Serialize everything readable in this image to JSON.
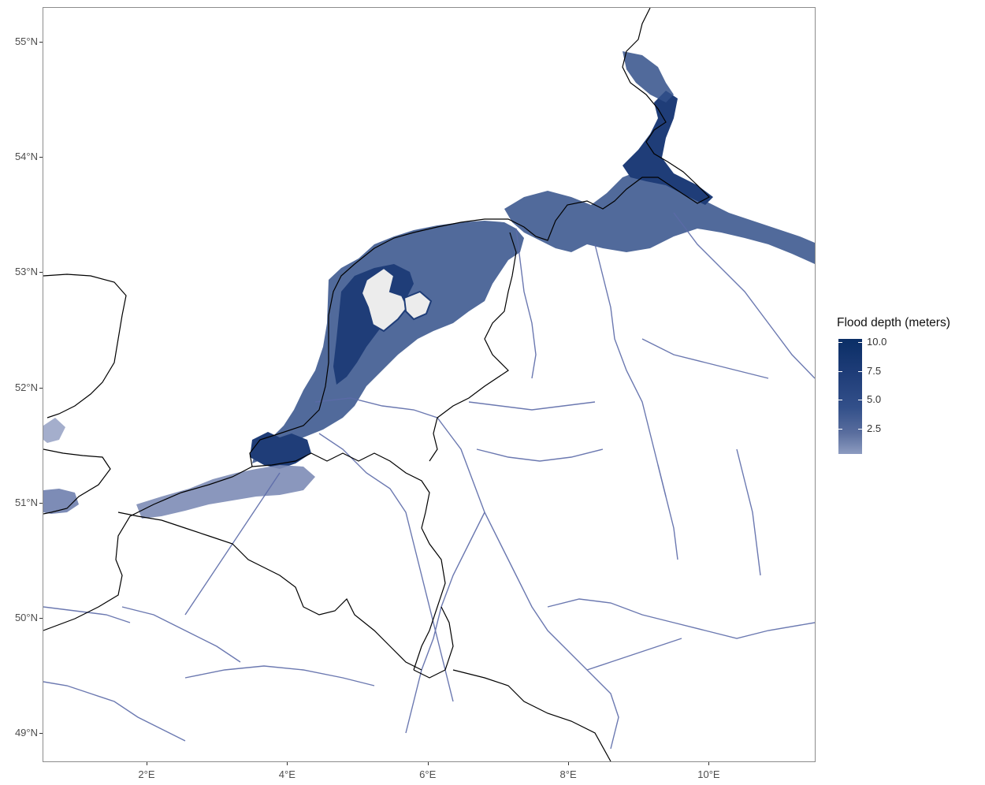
{
  "map": {
    "y_ticks": [
      {
        "label": "55°N",
        "lat": 55
      },
      {
        "label": "54°N",
        "lat": 54
      },
      {
        "label": "53°N",
        "lat": 53
      },
      {
        "label": "52°N",
        "lat": 52
      },
      {
        "label": "51°N",
        "lat": 51
      },
      {
        "label": "50°N",
        "lat": 50
      },
      {
        "label": "49°N",
        "lat": 49
      }
    ],
    "x_ticks": [
      {
        "label": "2°E",
        "lon": 2
      },
      {
        "label": "4°E",
        "lon": 4
      },
      {
        "label": "6°E",
        "lon": 6
      },
      {
        "label": "8°E",
        "lon": 8
      },
      {
        "label": "10°E",
        "lon": 10
      }
    ],
    "lon_range": [
      0.52,
      11.52
    ],
    "lat_range": [
      48.75,
      55.3
    ]
  },
  "legend": {
    "title": "Flood depth (meters)",
    "labels": [
      "10.0",
      "7.5",
      "5.0",
      "2.5"
    ],
    "values": [
      10.0,
      7.5,
      5.0,
      2.5
    ],
    "range": [
      0.3,
      10.3
    ],
    "colors": {
      "high": "#0a2e66",
      "low": "#8c9bc0"
    }
  },
  "colors": {
    "flood_deep": "#1f3d78",
    "flood_mid": "#33508a",
    "flood_shallow": "#7d8cb6",
    "river": "#5b6aa8",
    "border": "#000000",
    "polder": "#ececec"
  }
}
